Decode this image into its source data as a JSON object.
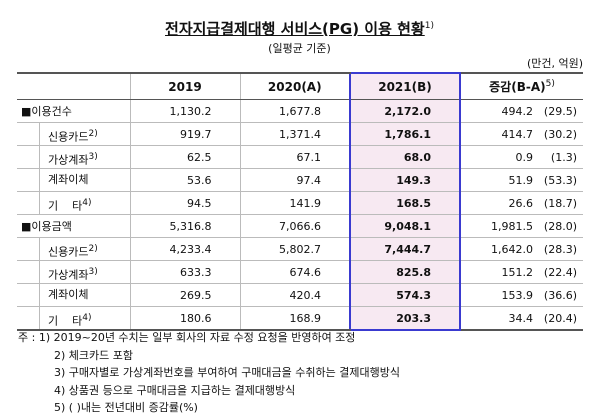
{
  "header": {
    "title": "전자지급결제대행 서비스(PG) 이용 현황",
    "title_note": "1)",
    "subtitle": "(일평균 기준)",
    "unit": "(만건, 억원)"
  },
  "table": {
    "columns": [
      "2019",
      "2020(A)",
      "2021(B)",
      "증감(B-A)"
    ],
    "change_note": "5)",
    "rows": [
      {
        "label": "■이용건수",
        "values": [
          "1,130.2",
          "1,677.8",
          "2,172.0"
        ],
        "change": "494.2",
        "rate": "(29.5)"
      },
      {
        "label": "신용카드",
        "note": "2)",
        "values": [
          "919.7",
          "1,371.4",
          "1,786.1"
        ],
        "change": "414.7",
        "rate": "(30.2)"
      },
      {
        "label": "가상계좌",
        "note": "3)",
        "values": [
          "62.5",
          "67.1",
          "68.0"
        ],
        "change": "0.9",
        "rate": "(1.3)"
      },
      {
        "label": "계좌이체",
        "values": [
          "53.6",
          "97.4",
          "149.3"
        ],
        "change": "51.9",
        "rate": "(53.3)"
      },
      {
        "label": "기    타",
        "note": "4)",
        "values": [
          "94.5",
          "141.9",
          "168.5"
        ],
        "change": "26.6",
        "rate": "(18.7)"
      },
      {
        "label": "■이용금액",
        "values": [
          "5,316.8",
          "7,066.6",
          "9,048.1"
        ],
        "change": "1,981.5",
        "rate": "(28.0)"
      },
      {
        "label": "신용카드",
        "note": "2)",
        "values": [
          "4,233.4",
          "5,802.7",
          "7,444.7"
        ],
        "change": "1,642.0",
        "rate": "(28.3)"
      },
      {
        "label": "가상계좌",
        "note": "3)",
        "values": [
          "633.3",
          "674.6",
          "825.8"
        ],
        "change": "151.2",
        "rate": "(22.4)"
      },
      {
        "label": "계좌이체",
        "values": [
          "269.5",
          "420.4",
          "574.3"
        ],
        "change": "153.9",
        "rate": "(36.6)"
      },
      {
        "label": "기    타",
        "note": "4)",
        "values": [
          "180.6",
          "168.9",
          "203.3"
        ],
        "change": "34.4",
        "rate": "(20.4)"
      }
    ]
  },
  "notes": [
    "주 : 1) 2019~20년 수치는 일부 회사의 자료 수정 요청을 반영하여 조정",
    "2) 체크카드 포함",
    "3) 구매자별로 가상계좌번호를 부여하여 구매대금을 수취하는 결제대행방식",
    "4) 상품권 등으로 구매대금을 지급하는 결제대행방식",
    "5) ( )내는 전년대비 증감률(%)"
  ]
}
